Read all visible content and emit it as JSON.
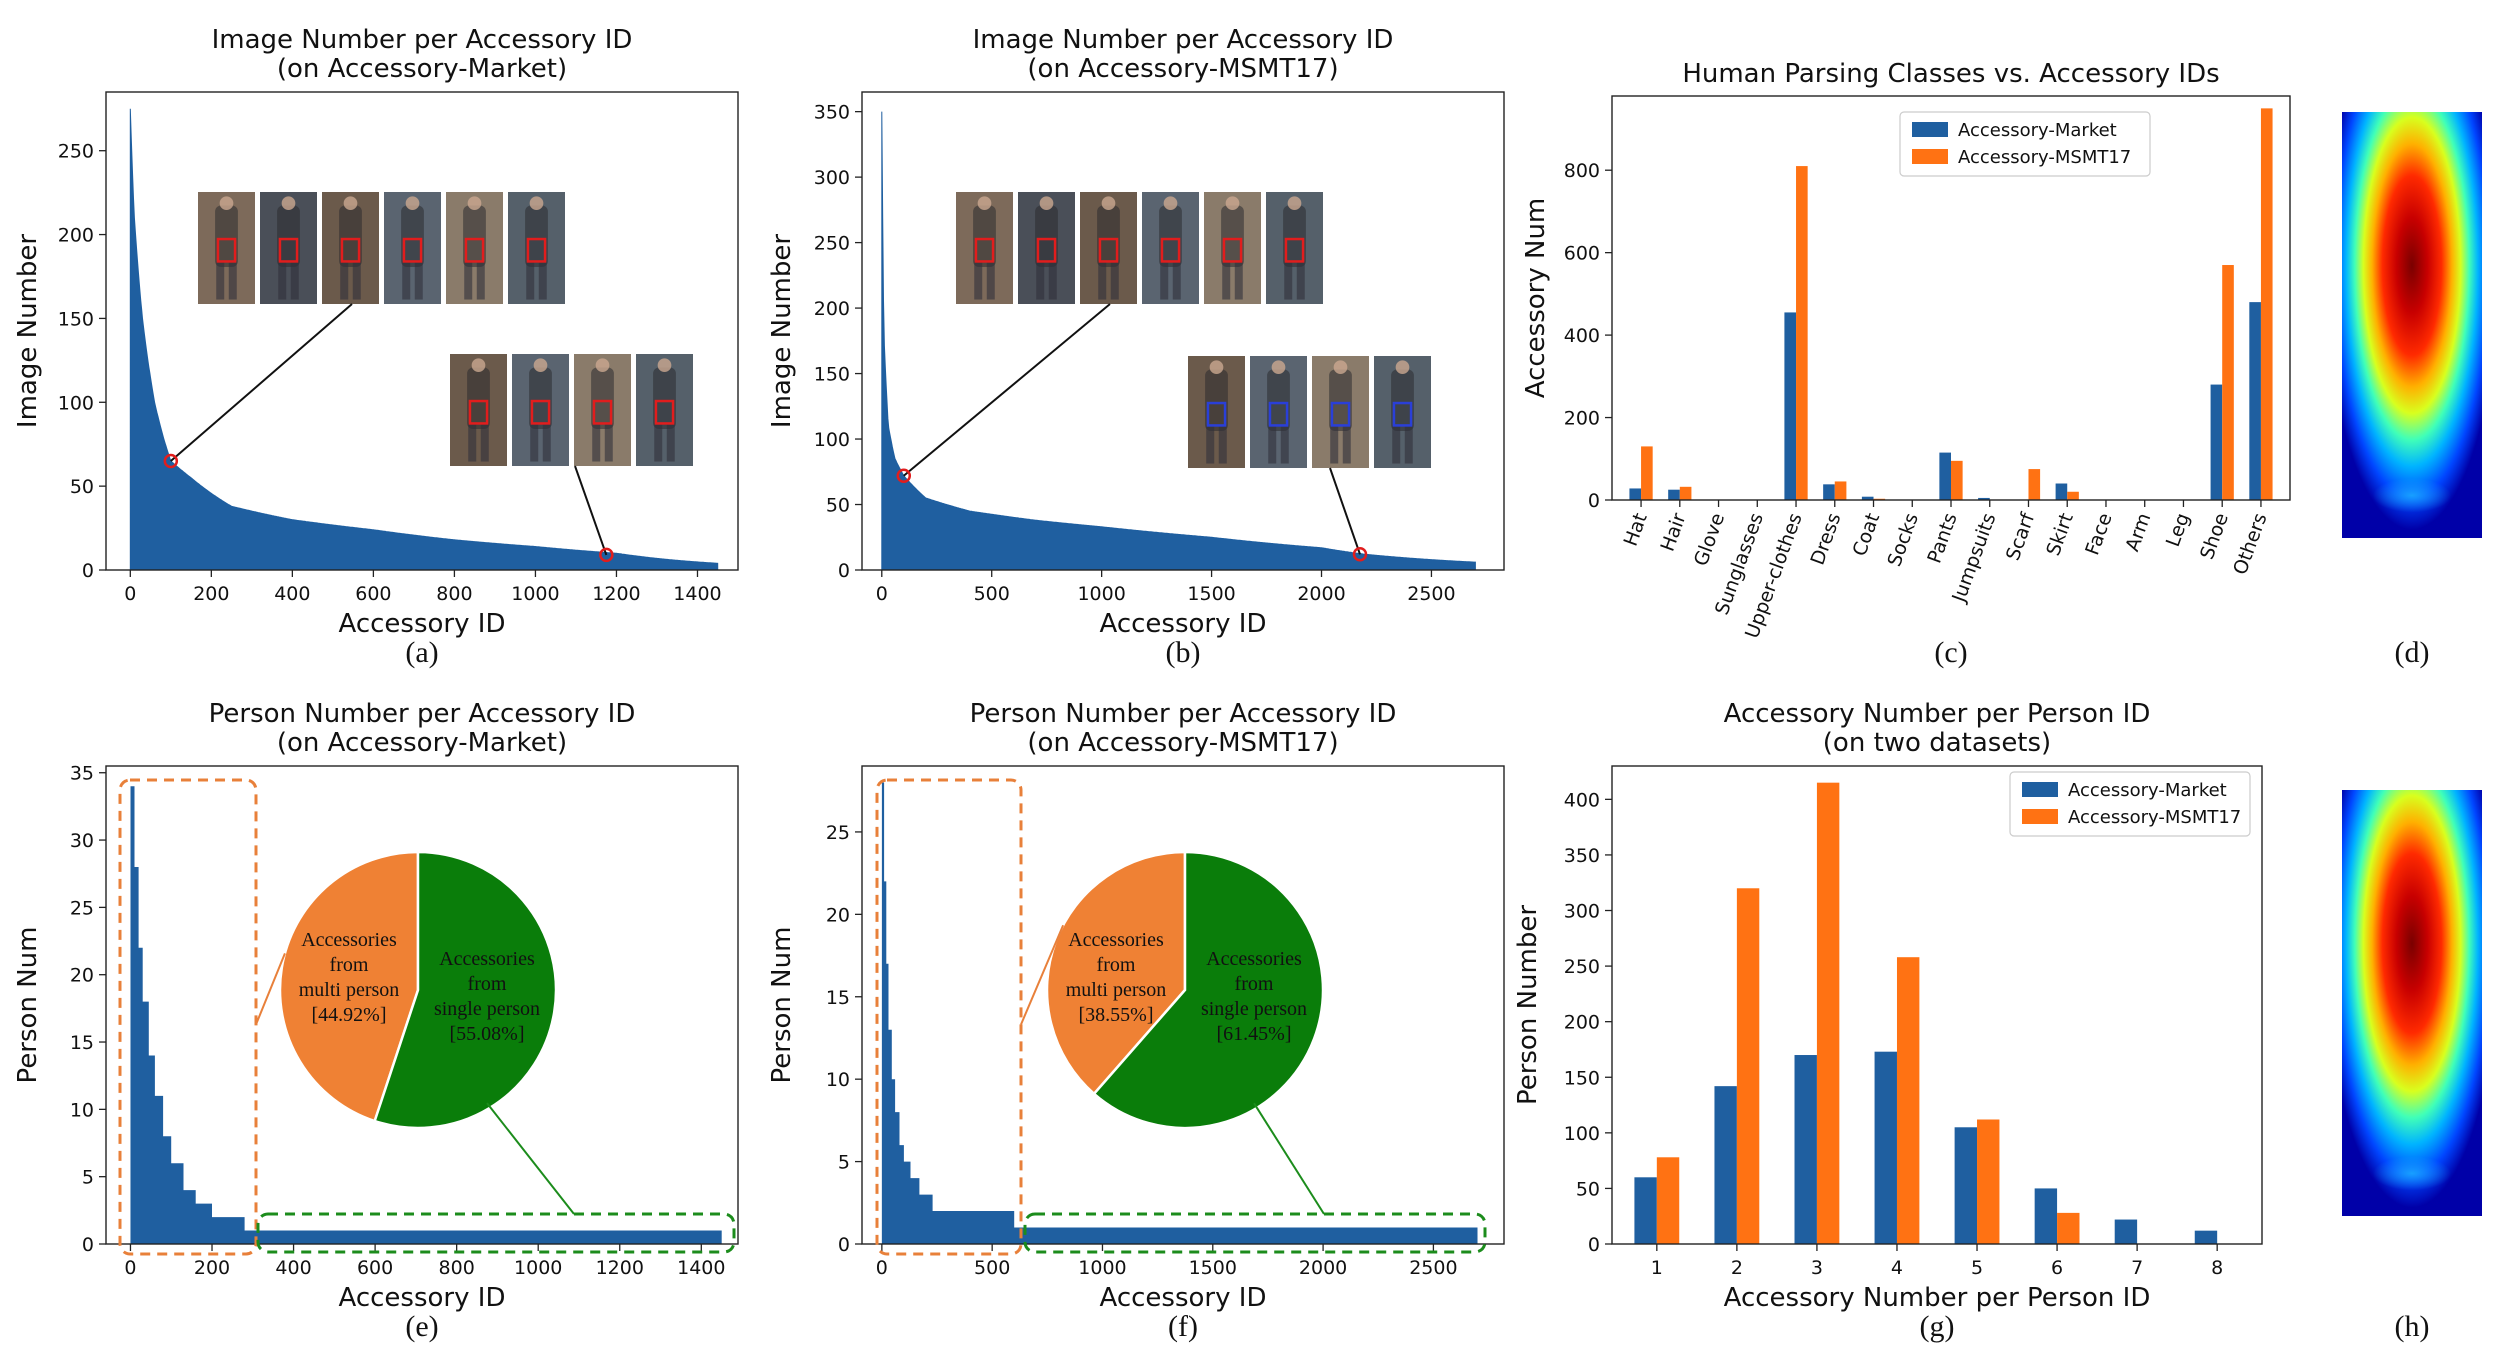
{
  "colors": {
    "market": "#1f5fa0",
    "msmt": "#ff7213",
    "green": "#0a7d0a",
    "orangePie": "#ef8134",
    "frameOrange": "#e8803a",
    "frameGreen": "#1c8c1c",
    "red": "#e11d1d"
  },
  "chart_data": [
    {
      "id": "a",
      "type": "area",
      "title": "Image Number per Accessory ID",
      "subtitle": "(on Accessory-Market)",
      "xlabel": "Accessory ID",
      "ylabel": "Image Number",
      "xlim": [
        -60,
        1500
      ],
      "ylim": [
        0,
        285
      ],
      "xticks": [
        0,
        200,
        400,
        600,
        800,
        1000,
        1200,
        1400
      ],
      "yticks": [
        0,
        50,
        100,
        150,
        200,
        250
      ],
      "n": 1450,
      "y_start": 275,
      "decay_points": [
        [
          0,
          275
        ],
        [
          10,
          210
        ],
        [
          30,
          150
        ],
        [
          60,
          100
        ],
        [
          100,
          65
        ],
        [
          150,
          55
        ],
        [
          250,
          38
        ],
        [
          400,
          30
        ],
        [
          600,
          24
        ],
        [
          800,
          18
        ],
        [
          1000,
          14
        ],
        [
          1200,
          10
        ],
        [
          1450,
          4
        ]
      ],
      "highlight_points": [
        [
          100,
          65
        ],
        [
          1175,
          9
        ]
      ],
      "caption": "(a)"
    },
    {
      "id": "b",
      "type": "area",
      "title": "Image Number per Accessory ID",
      "subtitle": "(on Accessory-MSMT17)",
      "xlabel": "Accessory ID",
      "ylabel": "Image Number",
      "xlim": [
        -90,
        2830
      ],
      "ylim": [
        0,
        365
      ],
      "xticks": [
        0,
        500,
        1000,
        1500,
        2000,
        2500
      ],
      "yticks": [
        0,
        50,
        100,
        150,
        200,
        250,
        300,
        350
      ],
      "n": 2700,
      "y_start": 350,
      "decay_points": [
        [
          0,
          350
        ],
        [
          10,
          180
        ],
        [
          30,
          110
        ],
        [
          60,
          85
        ],
        [
          100,
          72
        ],
        [
          200,
          55
        ],
        [
          400,
          45
        ],
        [
          700,
          38
        ],
        [
          1000,
          33
        ],
        [
          1500,
          25
        ],
        [
          2000,
          17
        ],
        [
          2200,
          12
        ],
        [
          2700,
          6
        ]
      ],
      "highlight_points": [
        [
          100,
          72
        ],
        [
          2175,
          12
        ]
      ],
      "caption": "(b)"
    },
    {
      "id": "c",
      "type": "bar",
      "title": "Human Parsing Classes vs. Accessory IDs",
      "ylabel": "Accessory Num",
      "ylim": [
        0,
        980
      ],
      "yticks": [
        0,
        200,
        400,
        600,
        800
      ],
      "categories": [
        "Hat",
        "Hair",
        "Glove",
        "Sunglasses",
        "Upper-clothes",
        "Dress",
        "Coat",
        "Socks",
        "Pants",
        "Jumpsuits",
        "Scarf",
        "Skirt",
        "Face",
        "Arm",
        "Leg",
        "Shoe",
        "Others"
      ],
      "series": [
        {
          "name": "Accessory-Market",
          "values": [
            28,
            25,
            0,
            0,
            455,
            38,
            8,
            0,
            115,
            5,
            0,
            40,
            0,
            0,
            0,
            280,
            480
          ]
        },
        {
          "name": "Accessory-MSMT17",
          "values": [
            130,
            32,
            0,
            0,
            810,
            45,
            3,
            0,
            95,
            0,
            75,
            20,
            0,
            0,
            0,
            570,
            950
          ]
        }
      ],
      "legend": "top-center",
      "caption": "(c)"
    },
    {
      "id": "e",
      "type": "bar+pie",
      "title": "Person Number per Accessory ID",
      "subtitle": "(on Accessory-Market)",
      "xlabel": "Accessory ID",
      "ylabel": "Person Num",
      "xlim": [
        -60,
        1490
      ],
      "ylim": [
        0,
        35.5
      ],
      "xticks": [
        0,
        200,
        400,
        600,
        800,
        1000,
        1200,
        1400
      ],
      "yticks": [
        0,
        5,
        10,
        15,
        20,
        25,
        30,
        35
      ],
      "n": 1450,
      "steps": [
        [
          0,
          34
        ],
        [
          10,
          28
        ],
        [
          20,
          22
        ],
        [
          30,
          18
        ],
        [
          45,
          14
        ],
        [
          60,
          11
        ],
        [
          80,
          8
        ],
        [
          100,
          6
        ],
        [
          130,
          4
        ],
        [
          160,
          3
        ],
        [
          200,
          2
        ],
        [
          280,
          1
        ]
      ],
      "pie": [
        {
          "label": "Accessories from multi person",
          "pct": "[44.92%]",
          "value": 44.92
        },
        {
          "label": "Accessories from single person",
          "pct": "[55.08%]",
          "value": 55.08
        }
      ],
      "pie_lines": [
        [
          "Accessories",
          "from",
          "multi person"
        ],
        [
          "Accessories",
          "from",
          "single person"
        ]
      ],
      "caption": "(e)"
    },
    {
      "id": "f",
      "type": "bar+pie",
      "title": "Person Number per Accessory ID",
      "subtitle": "(on Accessory-MSMT17)",
      "xlabel": "Accessory ID",
      "ylabel": "Person Num",
      "xlim": [
        -90,
        2820
      ],
      "ylim": [
        0,
        29
      ],
      "xticks": [
        0,
        500,
        1000,
        1500,
        2000,
        2500
      ],
      "yticks": [
        0,
        5,
        10,
        15,
        20,
        25
      ],
      "n": 2700,
      "steps": [
        [
          0,
          28
        ],
        [
          10,
          22
        ],
        [
          20,
          17
        ],
        [
          30,
          13
        ],
        [
          45,
          10
        ],
        [
          60,
          8
        ],
        [
          80,
          6
        ],
        [
          100,
          5
        ],
        [
          130,
          4
        ],
        [
          170,
          3
        ],
        [
          230,
          2
        ],
        [
          600,
          1
        ]
      ],
      "pie": [
        {
          "label": "Accessories from multi person",
          "pct": "[38.55%]",
          "value": 38.55
        },
        {
          "label": "Accessories from single person",
          "pct": "[61.45%]",
          "value": 61.45
        }
      ],
      "pie_lines": [
        [
          "Accessories",
          "from",
          "multi person"
        ],
        [
          "Accessories",
          "from",
          "single person"
        ]
      ],
      "caption": "(f)"
    },
    {
      "id": "g",
      "type": "bar",
      "title": "Accessory Number per Person ID",
      "subtitle": "(on two datasets)",
      "xlabel": "Accessory Number per Person ID",
      "ylabel": "Person Number",
      "ylim": [
        0,
        430
      ],
      "yticks": [
        0,
        50,
        100,
        150,
        200,
        250,
        300,
        350,
        400
      ],
      "categories": [
        "1",
        "2",
        "3",
        "4",
        "5",
        "6",
        "7",
        "8"
      ],
      "series": [
        {
          "name": "Accessory-Market",
          "values": [
            60,
            142,
            170,
            173,
            105,
            50,
            22,
            12
          ]
        },
        {
          "name": "Accessory-MSMT17",
          "values": [
            78,
            320,
            415,
            258,
            112,
            28,
            0,
            0
          ]
        }
      ],
      "legend": "top-right",
      "caption": "(g)"
    }
  ],
  "heatmaps": [
    {
      "caption": "(d)"
    },
    {
      "caption": "(h)"
    }
  ]
}
